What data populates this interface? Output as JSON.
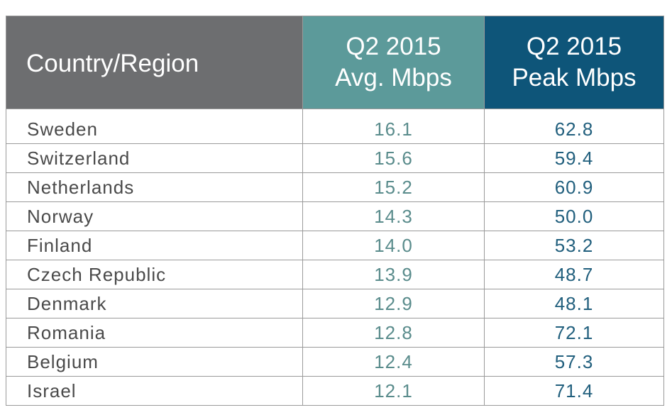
{
  "chart_data": {
    "type": "table",
    "columns": [
      "Country/Region",
      "Q2 2015 Avg. Mbps",
      "Q2 2015 Peak Mbps"
    ],
    "header": {
      "country": "Country/Region",
      "avg_line1": "Q2 2015",
      "avg_line2": "Avg. Mbps",
      "peak_line1": "Q2 2015",
      "peak_line2": "Peak Mbps"
    },
    "rows": [
      {
        "country": "Sweden",
        "avg": "16.1",
        "peak": "62.8"
      },
      {
        "country": "Switzerland",
        "avg": "15.6",
        "peak": "59.4"
      },
      {
        "country": "Netherlands",
        "avg": "15.2",
        "peak": "60.9"
      },
      {
        "country": "Norway",
        "avg": "14.3",
        "peak": "50.0"
      },
      {
        "country": "Finland",
        "avg": "14.0",
        "peak": "53.2"
      },
      {
        "country": "Czech Republic",
        "avg": "13.9",
        "peak": "48.7"
      },
      {
        "country": "Denmark",
        "avg": "12.9",
        "peak": "48.1"
      },
      {
        "country": "Romania",
        "avg": "12.8",
        "peak": "72.1"
      },
      {
        "country": "Belgium",
        "avg": "12.4",
        "peak": "57.3"
      },
      {
        "country": "Israel",
        "avg": "12.1",
        "peak": "71.4"
      }
    ]
  },
  "colors": {
    "header_country_bg": "#6d6e70",
    "header_avg_bg": "#5c9a9a",
    "header_peak_bg": "#0e5579",
    "avg_text": "#5a8c8c",
    "peak_text": "#215f7d"
  }
}
